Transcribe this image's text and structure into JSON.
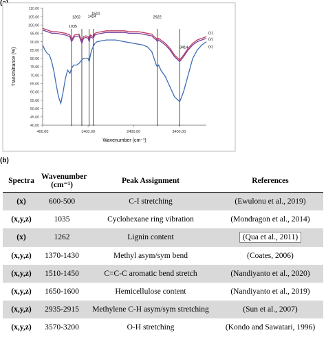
{
  "panel_a_label": "(a)",
  "panel_b_label": "(b)",
  "chart_data": {
    "type": "line",
    "title": "",
    "xlabel": "Wavenumber (cm⁻¹)",
    "ylabel": "Transmittance (%)",
    "xlim": [
      400,
      4000
    ],
    "ylim": [
      40,
      110
    ],
    "x_ticks": [
      "400.00",
      "1400.00",
      "2400.00",
      "3400.00"
    ],
    "y_ticks": [
      "40.00",
      "45.00",
      "50.00",
      "55.00",
      "60.00",
      "65.00",
      "70.00",
      "75.00",
      "80.00",
      "85.00",
      "90.00",
      "95.00",
      "100.00",
      "105.00",
      "110.00"
    ],
    "grid": false,
    "series": [
      {
        "name": "(z)",
        "color": "#c0395a",
        "x": [
          400,
          500,
          600,
          700,
          800,
          900,
          1000,
          1035,
          1100,
          1200,
          1262,
          1300,
          1350,
          1400,
          1424,
          1450,
          1510,
          1550,
          1600,
          1700,
          1800,
          1900,
          2000,
          2100,
          2200,
          2300,
          2400,
          2500,
          2600,
          2700,
          2800,
          2850,
          2900,
          2922,
          2950,
          3000,
          3100,
          3200,
          3300,
          3414,
          3500,
          3600,
          3700,
          3800,
          3900,
          4000
        ],
        "y": [
          98,
          97,
          96,
          96,
          95.5,
          95,
          94,
          91,
          94,
          94.5,
          90,
          93,
          93.5,
          93,
          91,
          94,
          93,
          95,
          95.5,
          96,
          96.5,
          96.5,
          96.5,
          96.5,
          96.5,
          96,
          96,
          96,
          95.5,
          95,
          94.5,
          93,
          92,
          91,
          92,
          91,
          89,
          86,
          82,
          79,
          82,
          86,
          89,
          91,
          92,
          93
        ]
      },
      {
        "name": "(y)",
        "color": "#7a3ea0",
        "x": [
          400,
          500,
          600,
          700,
          800,
          900,
          1000,
          1035,
          1100,
          1200,
          1262,
          1300,
          1350,
          1400,
          1424,
          1450,
          1510,
          1550,
          1600,
          1700,
          1800,
          1900,
          2000,
          2100,
          2200,
          2300,
          2400,
          2500,
          2600,
          2700,
          2800,
          2850,
          2900,
          2922,
          2950,
          3000,
          3100,
          3200,
          3300,
          3414,
          3500,
          3600,
          3700,
          3800,
          3900,
          4000
        ],
        "y": [
          97,
          96,
          95,
          95,
          94.5,
          94,
          93,
          90,
          93,
          93.5,
          89,
          92,
          92.5,
          92,
          90,
          93,
          92,
          94,
          94.5,
          95,
          95.5,
          95.5,
          95.5,
          95.5,
          95.5,
          95,
          95,
          95,
          94.5,
          94,
          93.5,
          92,
          91,
          90,
          91,
          90,
          88,
          85,
          81,
          78,
          81,
          85,
          88,
          90,
          91,
          92
        ]
      },
      {
        "name": "(x)",
        "color": "#3f6db3",
        "x": [
          400,
          450,
          500,
          550,
          600,
          650,
          700,
          750,
          800,
          850,
          900,
          950,
          1000,
          1035,
          1080,
          1150,
          1200,
          1262,
          1300,
          1350,
          1400,
          1424,
          1450,
          1480,
          1510,
          1550,
          1600,
          1700,
          1800,
          1900,
          2000,
          2100,
          2200,
          2300,
          2400,
          2500,
          2600,
          2700,
          2800,
          2850,
          2900,
          2922,
          2950,
          3000,
          3100,
          3200,
          3300,
          3414,
          3500,
          3600,
          3700,
          3800,
          3900,
          4000
        ],
        "y": [
          88,
          85,
          83,
          82,
          78,
          72,
          64,
          57,
          53,
          60,
          68,
          73,
          71,
          74,
          76,
          76,
          77,
          79,
          80,
          80,
          80,
          78,
          82,
          85,
          87,
          89,
          90,
          90.5,
          91,
          91,
          91,
          90.5,
          90,
          89.5,
          89,
          88.5,
          88,
          87,
          84,
          80,
          76,
          75,
          76,
          73,
          69,
          63,
          57,
          54,
          60,
          70,
          80,
          85,
          88,
          90
        ]
      }
    ],
    "peak_labels": [
      {
        "x": 1262,
        "label": "1262"
      },
      {
        "x": 1035,
        "label": "1035"
      },
      {
        "x": 1424,
        "label": "1424"
      },
      {
        "x": 1510,
        "label": "1510"
      },
      {
        "x": 2922,
        "label": "2922"
      },
      {
        "x": 3414,
        "label": "3414"
      }
    ],
    "legend": [
      "(z)",
      "(y)",
      "(x)"
    ],
    "legend_placement": "right, at curve ends"
  },
  "table": {
    "headers": [
      "Spectra",
      "Wavenumber (cm⁻¹)",
      "Peak Assignment",
      "References"
    ],
    "rows": [
      {
        "spectra": "(x)",
        "wavenumber": "600-500",
        "assignment": "C-I stretching",
        "reference": "(Ewulonu et al., 2019)"
      },
      {
        "spectra": "(x,y,z)",
        "wavenumber": "1035",
        "assignment": "Cyclohexane ring vibration",
        "reference": "(Mondragon et al., 2014)"
      },
      {
        "spectra": "(x)",
        "wavenumber": "1262",
        "assignment": "Lignin content",
        "reference": "(Qua et al., 2011)"
      },
      {
        "spectra": "(x,y,z)",
        "wavenumber": "1370-1430",
        "assignment": "Methyl asym/sym bend",
        "reference": "(Coates, 2006)"
      },
      {
        "spectra": "(x,y,z)",
        "wavenumber": "1510-1450",
        "assignment": "C=C-C aromatic bend stretch",
        "reference": "(Nandiyanto et al., 2020)"
      },
      {
        "spectra": "(x,y,z)",
        "wavenumber": "1650-1600",
        "assignment": "Hemicellulose content",
        "reference": "(Nandiyanto et al., 2019)"
      },
      {
        "spectra": "(x,y,z)",
        "wavenumber": "2935-2915",
        "assignment": "Methylene C-H asym/sym stretching",
        "reference": "(Sun et al., 2007)"
      },
      {
        "spectra": "(x,y,z)",
        "wavenumber": "3570-3200",
        "assignment": "O-H stretching",
        "reference": "(Kondo and Sawatari, 1996)"
      }
    ]
  }
}
